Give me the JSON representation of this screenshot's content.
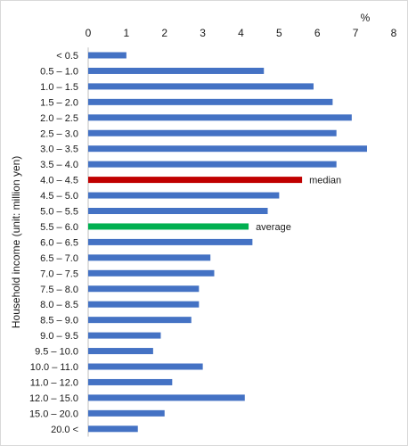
{
  "chart_data": {
    "type": "bar",
    "orientation": "horizontal",
    "unit_label": "%",
    "ylabel": "Household income (unit: million yen)",
    "xlim": [
      0,
      8
    ],
    "xticks": [
      "0",
      "1",
      "2",
      "3",
      "4",
      "5",
      "6",
      "7",
      "8"
    ],
    "grid": false,
    "categories": [
      "< 0.5",
      "0.5 – 1.0",
      "1.0 – 1.5",
      "1.5 – 2.0",
      "2.0 – 2.5",
      "2.5 – 3.0",
      "3.0 – 3.5",
      "3.5 – 4.0",
      "4.0 – 4.5",
      "4.5 – 5.0",
      "5.0 – 5.5",
      "5.5 – 6.0",
      "6.0 – 6.5",
      "6.5 – 7.0",
      "7.0 – 7.5",
      "7.5 – 8.0",
      "8.0 – 8.5",
      "8.5 – 9.0",
      "9.0 – 9.5",
      "9.5 – 10.0",
      "10.0 – 11.0",
      "11.0 – 12.0",
      "12.0 – 15.0",
      "15.0 – 20.0",
      "20.0 <"
    ],
    "values": [
      1.0,
      4.6,
      5.9,
      6.4,
      6.9,
      6.5,
      7.3,
      6.5,
      5.6,
      5.0,
      4.7,
      4.2,
      4.3,
      3.2,
      3.3,
      2.9,
      2.9,
      2.7,
      1.9,
      1.7,
      3.0,
      2.2,
      4.1,
      2.0,
      1.3
    ],
    "colors": {
      "default": "#4472C4",
      "median": "#C00000",
      "average": "#00B050"
    },
    "annotations": [
      {
        "category": "4.0 – 4.5",
        "text": "median",
        "color_key": "median"
      },
      {
        "category": "5.5 – 6.0",
        "text": "average",
        "color_key": "average"
      }
    ]
  }
}
